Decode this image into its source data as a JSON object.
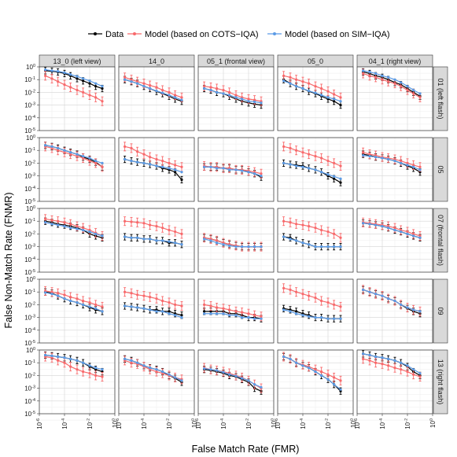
{
  "chart_data": {
    "type": "line",
    "xlabel": "False Match Rate (FMR)",
    "ylabel": "False Non-Match Rate (FNMR)",
    "x_scale": "log10",
    "y_scale": "log10",
    "xlim": [
      1e-06,
      1
    ],
    "ylim": [
      1e-05,
      1
    ],
    "x_tick_labels": [
      "10^-6",
      "10^-4",
      "10^-2",
      "10^0"
    ],
    "y_tick_labels": [
      "10^-5",
      "10^-4",
      "10^-3",
      "10^-2",
      "10^-1",
      "10^0"
    ],
    "legend_position": "top",
    "legend": [
      "Data",
      "Model (based on COTS−IQA)",
      "Model (based on SIM−IQA)"
    ],
    "colors": {
      "Data": "#000000",
      "Model (based on COTS−IQA)": "#f8696b",
      "Model (based on SIM−IQA)": "#5b9be6"
    },
    "columns": [
      "13_0 (left view)",
      "14_0",
      "05_1 (frontal view)",
      "05_0",
      "04_1 (right view)"
    ],
    "rows": [
      "01 (left flash)",
      "05",
      "07 (frontal flash)",
      "09",
      "13 (right flash)"
    ],
    "x": [
      3e-06,
      1e-05,
      3e-05,
      0.0001,
      0.0003,
      0.001,
      0.003,
      0.01,
      0.03,
      0.1
    ],
    "panels": [
      {
        "row": 0,
        "col": 0,
        "data": [
          0.5,
          0.45,
          0.4,
          0.3,
          0.2,
          0.12,
          0.08,
          0.05,
          0.03,
          0.02
        ],
        "cots": [
          0.2,
          0.12,
          0.07,
          0.04,
          0.025,
          0.015,
          0.01,
          0.006,
          0.004,
          0.002
        ],
        "sim": [
          0.6,
          0.5,
          0.45,
          0.35,
          0.25,
          0.18,
          0.12,
          0.08,
          0.05,
          0.03
        ]
      },
      {
        "row": 0,
        "col": 1,
        "data": [
          0.1,
          0.07,
          0.05,
          0.03,
          0.02,
          0.012,
          0.008,
          0.005,
          0.003,
          0.002
        ],
        "cots": [
          0.15,
          0.1,
          0.07,
          0.05,
          0.035,
          0.025,
          0.015,
          0.01,
          0.006,
          0.004
        ],
        "sim": [
          0.1,
          0.07,
          0.05,
          0.03,
          0.02,
          0.013,
          0.009,
          0.006,
          0.004,
          0.0025
        ]
      },
      {
        "row": 0,
        "col": 2,
        "data": [
          0.02,
          0.015,
          0.01,
          0.008,
          0.005,
          0.003,
          0.002,
          0.0015,
          0.0012,
          0.001
        ],
        "cots": [
          0.03,
          0.025,
          0.02,
          0.015,
          0.01,
          0.006,
          0.004,
          0.003,
          0.0025,
          0.002
        ],
        "sim": [
          0.02,
          0.015,
          0.01,
          0.008,
          0.006,
          0.004,
          0.003,
          0.002,
          0.0018,
          0.0015
        ]
      },
      {
        "row": 0,
        "col": 3,
        "data": [
          0.1,
          0.05,
          0.03,
          0.02,
          0.012,
          0.008,
          0.005,
          0.003,
          0.002,
          0.001
        ],
        "cots": [
          0.2,
          0.15,
          0.1,
          0.07,
          0.05,
          0.03,
          0.02,
          0.012,
          0.007,
          0.004
        ],
        "sim": [
          0.08,
          0.05,
          0.03,
          0.02,
          0.013,
          0.009,
          0.006,
          0.004,
          0.003,
          0.002
        ]
      },
      {
        "row": 0,
        "col": 4,
        "data": [
          0.4,
          0.3,
          0.2,
          0.15,
          0.1,
          0.06,
          0.04,
          0.02,
          0.01,
          0.005
        ],
        "cots": [
          0.3,
          0.2,
          0.15,
          0.1,
          0.07,
          0.05,
          0.03,
          0.015,
          0.008,
          0.004
        ],
        "sim": [
          0.5,
          0.4,
          0.3,
          0.2,
          0.15,
          0.1,
          0.06,
          0.03,
          0.015,
          0.008
        ]
      },
      {
        "row": 1,
        "col": 0,
        "data": [
          0.25,
          0.2,
          0.15,
          0.1,
          0.07,
          0.05,
          0.03,
          0.02,
          0.012,
          0.005
        ],
        "cots": [
          0.2,
          0.15,
          0.1,
          0.07,
          0.05,
          0.035,
          0.025,
          0.015,
          0.01,
          0.005
        ],
        "sim": [
          0.25,
          0.2,
          0.15,
          0.1,
          0.07,
          0.05,
          0.035,
          0.025,
          0.015,
          0.01
        ]
      },
      {
        "row": 1,
        "col": 1,
        "data": [
          0.02,
          0.015,
          0.012,
          0.01,
          0.008,
          0.006,
          0.004,
          0.003,
          0.002,
          0.0005
        ],
        "cots": [
          0.2,
          0.15,
          0.08,
          0.05,
          0.03,
          0.02,
          0.015,
          0.01,
          0.007,
          0.005
        ],
        "sim": [
          0.02,
          0.015,
          0.012,
          0.01,
          0.008,
          0.006,
          0.005,
          0.004,
          0.003,
          0.002
        ]
      },
      {
        "row": 1,
        "col": 2,
        "data": [
          0.005,
          0.005,
          0.005,
          0.004,
          0.004,
          0.003,
          0.003,
          0.002,
          0.0015,
          0.0008
        ],
        "cots": [
          0.006,
          0.005,
          0.005,
          0.004,
          0.004,
          0.003,
          0.003,
          0.0025,
          0.002,
          0.0015
        ],
        "sim": [
          0.005,
          0.005,
          0.004,
          0.004,
          0.003,
          0.003,
          0.0025,
          0.002,
          0.0015,
          0.001
        ]
      },
      {
        "row": 1,
        "col": 3,
        "data": [
          0.01,
          0.008,
          0.007,
          0.006,
          0.004,
          0.003,
          0.002,
          0.001,
          0.0006,
          0.0003
        ],
        "cots": [
          0.2,
          0.15,
          0.1,
          0.07,
          0.05,
          0.035,
          0.025,
          0.015,
          0.01,
          0.006
        ],
        "sim": [
          0.01,
          0.008,
          0.006,
          0.005,
          0.004,
          0.003,
          0.002,
          0.0013,
          0.0009,
          0.0006
        ]
      },
      {
        "row": 1,
        "col": 4,
        "data": [
          0.05,
          0.04,
          0.03,
          0.025,
          0.02,
          0.015,
          0.01,
          0.006,
          0.004,
          0.002
        ],
        "cots": [
          0.07,
          0.05,
          0.04,
          0.03,
          0.025,
          0.02,
          0.015,
          0.01,
          0.007,
          0.005
        ],
        "sim": [
          0.04,
          0.035,
          0.03,
          0.025,
          0.02,
          0.015,
          0.01,
          0.007,
          0.005,
          0.003
        ]
      },
      {
        "row": 2,
        "col": 0,
        "data": [
          0.1,
          0.08,
          0.06,
          0.05,
          0.04,
          0.03,
          0.02,
          0.01,
          0.007,
          0.005
        ],
        "cots": [
          0.15,
          0.12,
          0.1,
          0.08,
          0.06,
          0.04,
          0.03,
          0.02,
          0.012,
          0.007
        ],
        "sim": [
          0.08,
          0.06,
          0.05,
          0.04,
          0.03,
          0.025,
          0.02,
          0.015,
          0.01,
          0.007
        ]
      },
      {
        "row": 2,
        "col": 1,
        "data": [
          0.006,
          0.005,
          0.005,
          0.004,
          0.004,
          0.003,
          0.003,
          0.002,
          0.002,
          0.0015
        ],
        "cots": [
          0.1,
          0.09,
          0.08,
          0.07,
          0.05,
          0.04,
          0.03,
          0.02,
          0.015,
          0.01
        ],
        "sim": [
          0.006,
          0.005,
          0.005,
          0.004,
          0.004,
          0.003,
          0.003,
          0.0025,
          0.002,
          0.0015
        ]
      },
      {
        "row": 2,
        "col": 2,
        "data": [
          0.005,
          0.004,
          0.003,
          0.002,
          0.0015,
          0.0012,
          0.001,
          0.001,
          0.001,
          0.001
        ],
        "cots": [
          0.005,
          0.004,
          0.003,
          0.002,
          0.0015,
          0.0012,
          0.001,
          0.001,
          0.001,
          0.001
        ],
        "sim": [
          0.004,
          0.003,
          0.002,
          0.0015,
          0.0012,
          0.001,
          0.001,
          0.001,
          0.001,
          0.001
        ]
      },
      {
        "row": 2,
        "col": 3,
        "data": [
          0.006,
          0.005,
          0.003,
          0.002,
          0.0015,
          0.001,
          0.001,
          0.001,
          0.001,
          0.001
        ],
        "cots": [
          0.1,
          0.08,
          0.06,
          0.05,
          0.04,
          0.03,
          0.02,
          0.015,
          0.01,
          0.005
        ],
        "sim": [
          0.006,
          0.004,
          0.003,
          0.002,
          0.0015,
          0.001,
          0.001,
          0.001,
          0.001,
          0.001
        ]
      },
      {
        "row": 2,
        "col": 4,
        "data": [
          0.07,
          0.06,
          0.05,
          0.04,
          0.03,
          0.02,
          0.015,
          0.01,
          0.007,
          0.005
        ],
        "cots": [
          0.08,
          0.07,
          0.06,
          0.05,
          0.04,
          0.03,
          0.02,
          0.015,
          0.01,
          0.007
        ],
        "sim": [
          0.07,
          0.06,
          0.05,
          0.04,
          0.03,
          0.02,
          0.015,
          0.01,
          0.007,
          0.005
        ]
      },
      {
        "row": 3,
        "col": 0,
        "data": [
          0.1,
          0.08,
          0.05,
          0.03,
          0.02,
          0.015,
          0.01,
          0.006,
          0.004,
          0.003
        ],
        "cots": [
          0.12,
          0.1,
          0.08,
          0.06,
          0.04,
          0.03,
          0.02,
          0.015,
          0.01,
          0.007
        ],
        "sim": [
          0.09,
          0.07,
          0.05,
          0.03,
          0.02,
          0.015,
          0.01,
          0.007,
          0.005,
          0.003
        ]
      },
      {
        "row": 3,
        "col": 1,
        "data": [
          0.008,
          0.007,
          0.006,
          0.005,
          0.004,
          0.004,
          0.003,
          0.003,
          0.002,
          0.0015
        ],
        "cots": [
          0.1,
          0.08,
          0.06,
          0.05,
          0.04,
          0.03,
          0.02,
          0.015,
          0.01,
          0.008
        ],
        "sim": [
          0.008,
          0.007,
          0.006,
          0.005,
          0.004,
          0.003,
          0.003,
          0.002,
          0.0015,
          0.001
        ]
      },
      {
        "row": 3,
        "col": 2,
        "data": [
          0.003,
          0.003,
          0.003,
          0.003,
          0.002,
          0.002,
          0.0015,
          0.001,
          0.001,
          0.0008
        ],
        "cots": [
          0.01,
          0.008,
          0.006,
          0.005,
          0.004,
          0.003,
          0.0025,
          0.002,
          0.0015,
          0.0012
        ],
        "sim": [
          0.002,
          0.002,
          0.002,
          0.002,
          0.0015,
          0.0015,
          0.001,
          0.001,
          0.0008,
          0.0008
        ]
      },
      {
        "row": 3,
        "col": 3,
        "data": [
          0.005,
          0.004,
          0.003,
          0.002,
          0.0015,
          0.001,
          0.001,
          0.0008,
          0.0008,
          0.0008
        ],
        "cots": [
          0.2,
          0.15,
          0.1,
          0.07,
          0.05,
          0.035,
          0.02,
          0.015,
          0.01,
          0.007
        ],
        "sim": [
          0.004,
          0.003,
          0.002,
          0.0015,
          0.0012,
          0.001,
          0.001,
          0.0008,
          0.0008,
          0.0008
        ]
      },
      {
        "row": 3,
        "col": 4,
        "data": [
          0.15,
          0.1,
          0.07,
          0.05,
          0.03,
          0.02,
          0.01,
          0.005,
          0.003,
          0.002
        ],
        "cots": [
          0.15,
          0.1,
          0.07,
          0.05,
          0.03,
          0.02,
          0.01,
          0.006,
          0.004,
          0.003
        ],
        "sim": [
          0.15,
          0.1,
          0.07,
          0.05,
          0.03,
          0.02,
          0.01,
          0.006,
          0.004,
          0.003
        ]
      },
      {
        "row": 4,
        "col": 0,
        "data": [
          0.4,
          0.35,
          0.3,
          0.25,
          0.2,
          0.15,
          0.1,
          0.05,
          0.03,
          0.02
        ],
        "cots": [
          0.3,
          0.25,
          0.15,
          0.1,
          0.05,
          0.03,
          0.02,
          0.015,
          0.01,
          0.008
        ],
        "sim": [
          0.4,
          0.35,
          0.3,
          0.25,
          0.2,
          0.15,
          0.1,
          0.06,
          0.04,
          0.03
        ]
      },
      {
        "row": 4,
        "col": 1,
        "data": [
          0.2,
          0.15,
          0.1,
          0.06,
          0.04,
          0.03,
          0.02,
          0.01,
          0.006,
          0.003
        ],
        "cots": [
          0.15,
          0.1,
          0.08,
          0.05,
          0.03,
          0.02,
          0.015,
          0.01,
          0.007,
          0.005
        ],
        "sim": [
          0.2,
          0.15,
          0.1,
          0.06,
          0.04,
          0.03,
          0.02,
          0.012,
          0.007,
          0.004
        ]
      },
      {
        "row": 4,
        "col": 2,
        "data": [
          0.03,
          0.025,
          0.02,
          0.015,
          0.01,
          0.008,
          0.005,
          0.003,
          0.001,
          0.0006
        ],
        "cots": [
          0.04,
          0.03,
          0.025,
          0.02,
          0.015,
          0.01,
          0.007,
          0.004,
          0.002,
          0.001
        ],
        "sim": [
          0.035,
          0.03,
          0.025,
          0.018,
          0.012,
          0.009,
          0.006,
          0.004,
          0.002,
          0.0012
        ]
      },
      {
        "row": 4,
        "col": 3,
        "data": [
          0.3,
          0.2,
          0.1,
          0.06,
          0.04,
          0.02,
          0.01,
          0.005,
          0.002,
          0.0006
        ],
        "cots": [
          0.3,
          0.2,
          0.1,
          0.07,
          0.05,
          0.03,
          0.02,
          0.012,
          0.007,
          0.004
        ],
        "sim": [
          0.3,
          0.2,
          0.1,
          0.06,
          0.04,
          0.02,
          0.01,
          0.005,
          0.002,
          0.0008
        ]
      },
      {
        "row": 4,
        "col": 4,
        "data": [
          0.5,
          0.4,
          0.3,
          0.25,
          0.2,
          0.15,
          0.1,
          0.05,
          0.02,
          0.01
        ],
        "cots": [
          0.2,
          0.15,
          0.1,
          0.08,
          0.06,
          0.04,
          0.03,
          0.02,
          0.012,
          0.008
        ],
        "sim": [
          0.5,
          0.4,
          0.3,
          0.25,
          0.2,
          0.15,
          0.1,
          0.06,
          0.03,
          0.015
        ]
      }
    ]
  }
}
